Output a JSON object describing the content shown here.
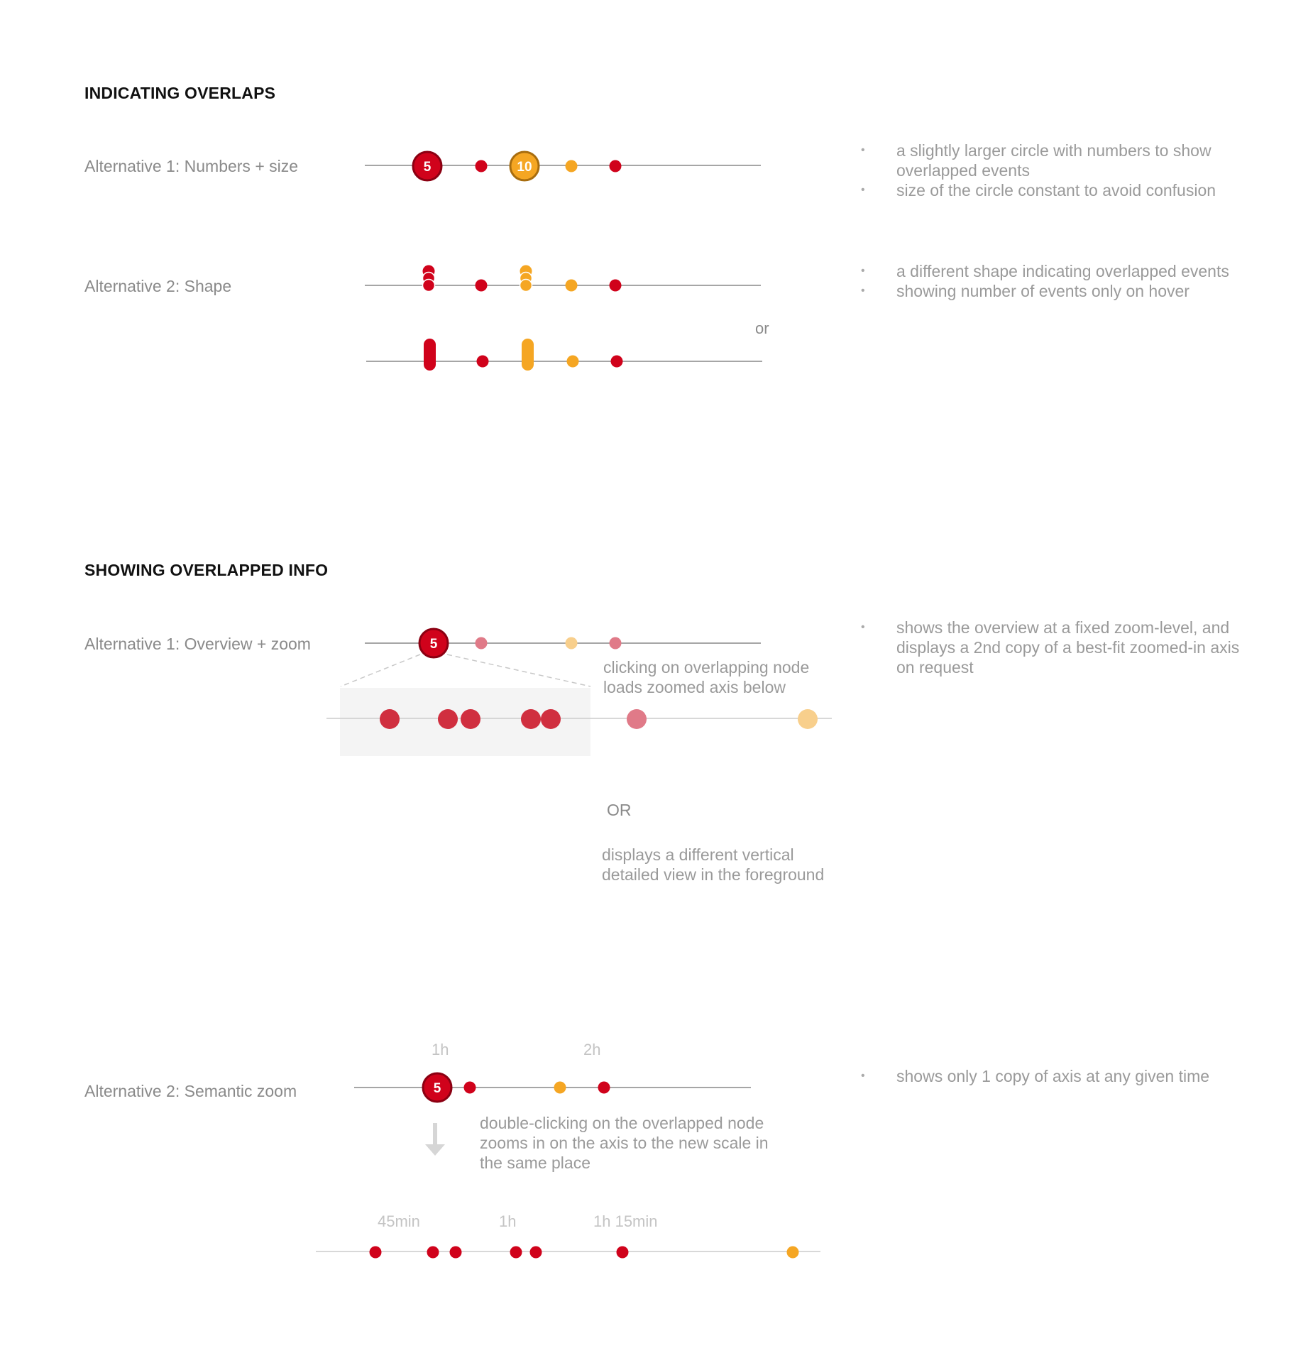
{
  "colors": {
    "red": "#d0021b",
    "orange": "#f5a623",
    "red_dark": "#8b0012",
    "orange_dark": "#a86d0f",
    "axis": "#888888",
    "text_gray": "#8a8a8a"
  },
  "section1": {
    "heading": "INDICATING OVERLAPS",
    "alt1": {
      "label": "Alternative 1: Numbers + size",
      "badges": [
        "5",
        "10"
      ],
      "bullets": [
        "a slightly larger circle with numbers to show overlapped events",
        "size of the circle constant to avoid confusion"
      ]
    },
    "alt2": {
      "label": "Alternative 2: Shape",
      "or_text": "or",
      "bullets": [
        "a different shape indicating overlapped events",
        "showing number of events only on hover"
      ]
    }
  },
  "section2": {
    "heading": "SHOWING OVERLAPPED INFO",
    "alt1": {
      "label": "Alternative 1: Overview + zoom",
      "badge": "5",
      "note": "clicking on overlapping node loads zoomed axis below",
      "or_text": "OR",
      "note2": "displays a different vertical detailed view in the foreground",
      "bullets": [
        "shows the overview at a fixed zoom-level, and displays a 2nd copy of a best-fit zoomed-in axis on request"
      ]
    },
    "alt2": {
      "label": "Alternative 2: Semantic zoom",
      "badge": "5",
      "ticks_top": [
        "1h",
        "2h"
      ],
      "note": "double-clicking on the overlapped node zooms in on the axis to the new scale in the same place",
      "ticks_bottom": [
        "45min",
        "1h",
        "1h 15min"
      ],
      "bullets": [
        "shows only 1 copy of axis at any given time"
      ]
    }
  }
}
